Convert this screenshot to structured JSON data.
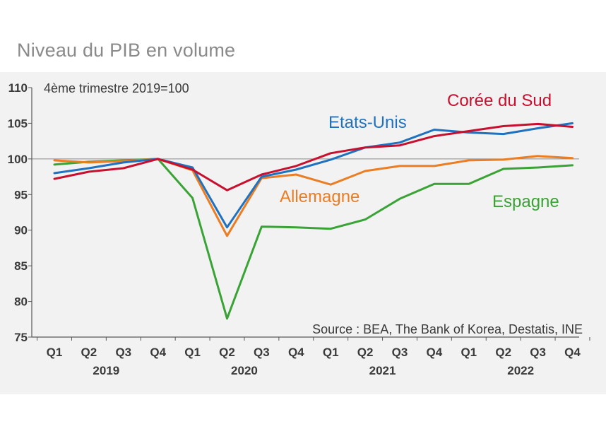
{
  "title": "Niveau du PIB en volume",
  "chart_data": {
    "type": "line",
    "title": "Niveau du PIB en volume",
    "annotation": "4ème trimestre 2019=100",
    "source": "Source : BEA, The Bank of Korea, Destatis, INE",
    "x": [
      "Q1",
      "Q2",
      "Q3",
      "Q4",
      "Q1",
      "Q2",
      "Q3",
      "Q4",
      "Q1",
      "Q2",
      "Q3",
      "Q4",
      "Q1",
      "Q2",
      "Q3",
      "Q4"
    ],
    "years": [
      {
        "label": "2019",
        "start": 0,
        "end": 3
      },
      {
        "label": "2020",
        "start": 4,
        "end": 7
      },
      {
        "label": "2021",
        "start": 8,
        "end": 11
      },
      {
        "label": "2022",
        "start": 12,
        "end": 15
      }
    ],
    "ylim": [
      75,
      110
    ],
    "yticks": [
      75,
      80,
      85,
      90,
      95,
      100,
      105,
      110
    ],
    "reference_line": 100,
    "series": [
      {
        "name": "Espagne",
        "color": "#3aa335",
        "values": [
          99.2,
          99.6,
          99.8,
          100.0,
          94.5,
          77.6,
          90.5,
          90.4,
          90.2,
          91.5,
          94.4,
          96.5,
          96.5,
          98.6,
          98.8,
          99.1
        ],
        "label_pos": [
          697,
          293
        ]
      },
      {
        "name": "Allemagne",
        "color": "#ec7d22",
        "values": [
          99.8,
          99.5,
          99.7,
          100.0,
          98.4,
          89.2,
          97.3,
          97.8,
          96.4,
          98.3,
          99.0,
          99.0,
          99.8,
          99.9,
          100.4,
          100.1
        ],
        "label_pos": [
          396,
          286
        ]
      },
      {
        "name": "Etats-Unis",
        "color": "#1f72bf",
        "values": [
          98.0,
          98.7,
          99.5,
          100.0,
          98.8,
          90.4,
          97.5,
          98.5,
          99.9,
          101.6,
          102.3,
          104.1,
          103.7,
          103.5,
          104.3,
          105.0
        ],
        "label_pos": [
          465,
          181
        ]
      },
      {
        "name": "Corée du Sud",
        "color": "#c8102e",
        "values": [
          97.2,
          98.2,
          98.7,
          100.0,
          98.5,
          95.6,
          97.8,
          99.0,
          100.8,
          101.6,
          101.9,
          103.2,
          103.9,
          104.6,
          104.9,
          104.5
        ],
        "label_pos": [
          633,
          150
        ]
      }
    ]
  }
}
